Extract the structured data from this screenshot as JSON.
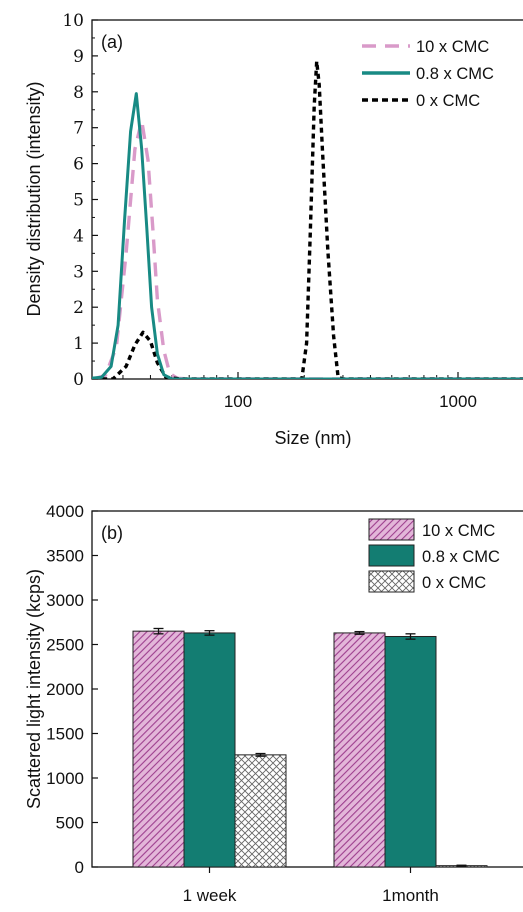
{
  "chart_data": [
    {
      "type": "line",
      "panel_label": "(a)",
      "xlabel": "Size (nm)",
      "ylabel": "Density distribution (intensity)",
      "xscale": "log",
      "xlim": [
        18,
        2000
      ],
      "ylim": [
        0,
        10
      ],
      "x_ticks": [
        100,
        1000
      ],
      "x_tick_labels": [
        "100",
        "1000"
      ],
      "y_ticks": [
        0,
        1,
        2,
        3,
        4,
        5,
        6,
        7,
        8,
        9,
        10
      ],
      "y_tick_labels": [
        "0",
        "1",
        "2",
        "3",
        "4",
        "5",
        "6",
        "7",
        "8",
        "9",
        "10"
      ],
      "legend_position": "top-right",
      "series": [
        {
          "name": "10 x CMC",
          "color": "#d99ac9",
          "dash": "long-dash",
          "points": [
            [
              22,
              0
            ],
            [
              25,
              0.1
            ],
            [
              28,
              0.9
            ],
            [
              31,
              3.5
            ],
            [
              34,
              6.4
            ],
            [
              36.5,
              7.2
            ],
            [
              39,
              6.1
            ],
            [
              41,
              4.2
            ],
            [
              43,
              2.2
            ],
            [
              46,
              0.8
            ],
            [
              49,
              0.15
            ],
            [
              53,
              0.02
            ],
            [
              60,
              0
            ],
            [
              2000,
              0
            ]
          ]
        },
        {
          "name": "0.8 x CMC",
          "color": "#188a84",
          "dash": "solid",
          "points": [
            [
              20,
              0
            ],
            [
              24,
              0.05
            ],
            [
              26.5,
              0.35
            ],
            [
              28.5,
              1.5
            ],
            [
              30.5,
              4.4
            ],
            [
              32.5,
              6.9
            ],
            [
              34.5,
              7.95
            ],
            [
              36.5,
              6.4
            ],
            [
              38.5,
              4.2
            ],
            [
              40.5,
              2.0
            ],
            [
              43,
              0.7
            ],
            [
              46,
              0.12
            ],
            [
              50,
              0
            ],
            [
              2000,
              0
            ]
          ]
        },
        {
          "name": "0 x CMC",
          "color": "#000000",
          "dash": "short-dash",
          "points": [
            [
              20,
              0
            ],
            [
              27,
              0
            ],
            [
              31,
              0.35
            ],
            [
              34,
              0.95
            ],
            [
              37,
              1.3
            ],
            [
              40,
              1.05
            ],
            [
              43,
              0.45
            ],
            [
              47,
              0.05
            ],
            [
              55,
              0
            ],
            [
              195,
              0
            ],
            [
              205,
              1.0
            ],
            [
              213,
              4.0
            ],
            [
              222,
              7.6
            ],
            [
              228,
              8.85
            ],
            [
              234,
              8.2
            ],
            [
              242,
              6.4
            ],
            [
              256,
              3.6
            ],
            [
              272,
              1.2
            ],
            [
              285,
              0.05
            ],
            [
              300,
              0
            ],
            [
              2000,
              0
            ]
          ]
        }
      ]
    },
    {
      "type": "bar",
      "panel_label": "(b)",
      "ylabel": "Scattered light intensity (kcps)",
      "xlabel": "",
      "categories": [
        "1 week",
        "1month"
      ],
      "ylim": [
        0,
        4000
      ],
      "y_ticks": [
        0,
        500,
        1000,
        1500,
        2000,
        2500,
        3000,
        3500,
        4000
      ],
      "y_tick_labels": [
        "0",
        "500",
        "1000",
        "1500",
        "2000",
        "2500",
        "3000",
        "3500",
        "4000"
      ],
      "legend_position": "top-right",
      "series": [
        {
          "name": "10 x CMC",
          "color": "#b855a6",
          "pattern": "diagonal-hatch",
          "values": [
            2650,
            2630
          ],
          "errors": [
            30,
            15
          ]
        },
        {
          "name": "0.8 x CMC",
          "color": "#137d72",
          "pattern": "solid",
          "values": [
            2630,
            2590
          ],
          "errors": [
            25,
            30
          ]
        },
        {
          "name": "0 x CMC",
          "color": "#555555",
          "pattern": "crosshatch",
          "values": [
            1260,
            15
          ],
          "errors": [
            15,
            5
          ]
        }
      ]
    }
  ]
}
